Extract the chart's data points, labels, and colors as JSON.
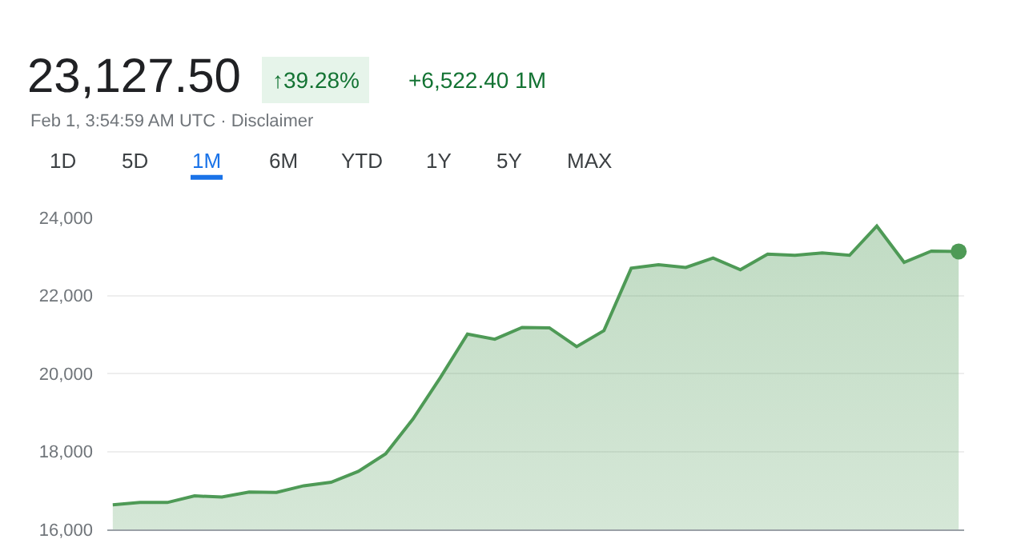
{
  "chart_data": {
    "type": "area",
    "title": "23,127.50",
    "subtitle": "Feb 1, 3:54:59 AM UTC · Disclaimer",
    "annotations": [
      "↑39.28%",
      "+6,522.40 1M",
      "1D",
      "5D",
      "1M",
      "6M",
      "YTD",
      "1Y",
      "5Y",
      "MAX"
    ],
    "categories": [
      null,
      null,
      null,
      null,
      null,
      null,
      null,
      null,
      null,
      null,
      null,
      null,
      null,
      null,
      null,
      null,
      null,
      null,
      null,
      null,
      null,
      null,
      null,
      null,
      null,
      null,
      null,
      null,
      null,
      null,
      null,
      null
    ],
    "series": [
      {
        "color": "#4e9a56",
        "values": [
          16630,
          16690,
          16690,
          16860,
          16830,
          16960,
          16950,
          17120,
          17210,
          17490,
          17940,
          18830,
          19890,
          21010,
          20880,
          21180,
          21170,
          20690,
          21100,
          22700,
          22790,
          22720,
          22960,
          22660,
          23060,
          23030,
          23090,
          23030,
          23780,
          22850,
          23140,
          23130
        ]
      }
    ],
    "ylim": [
      16000,
      24000
    ],
    "yticks": [
      {
        "value": 16000,
        "label": "16,000"
      },
      {
        "value": 18000,
        "label": "18,000"
      },
      {
        "value": 20000,
        "label": "20,000"
      },
      {
        "value": 22000,
        "label": "22,000"
      },
      {
        "value": 24000,
        "label": "24,000"
      }
    ],
    "grid": "y",
    "tick_labels": "y"
  }
}
